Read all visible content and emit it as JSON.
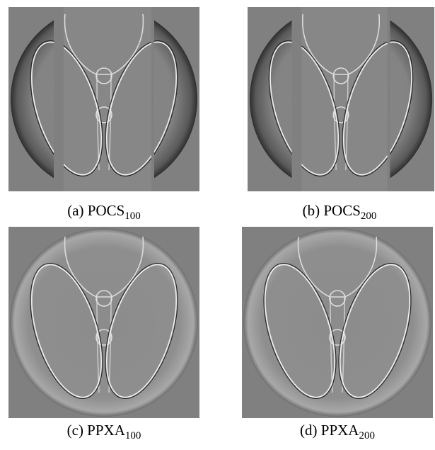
{
  "figures": [
    {
      "label": "(a) POCS",
      "subscript": "100"
    },
    {
      "label": "(b) POCS",
      "subscript": "200"
    },
    {
      "label": "(c) PPXA",
      "subscript": "100"
    },
    {
      "label": "(d) PPXA",
      "subscript": "200"
    }
  ]
}
